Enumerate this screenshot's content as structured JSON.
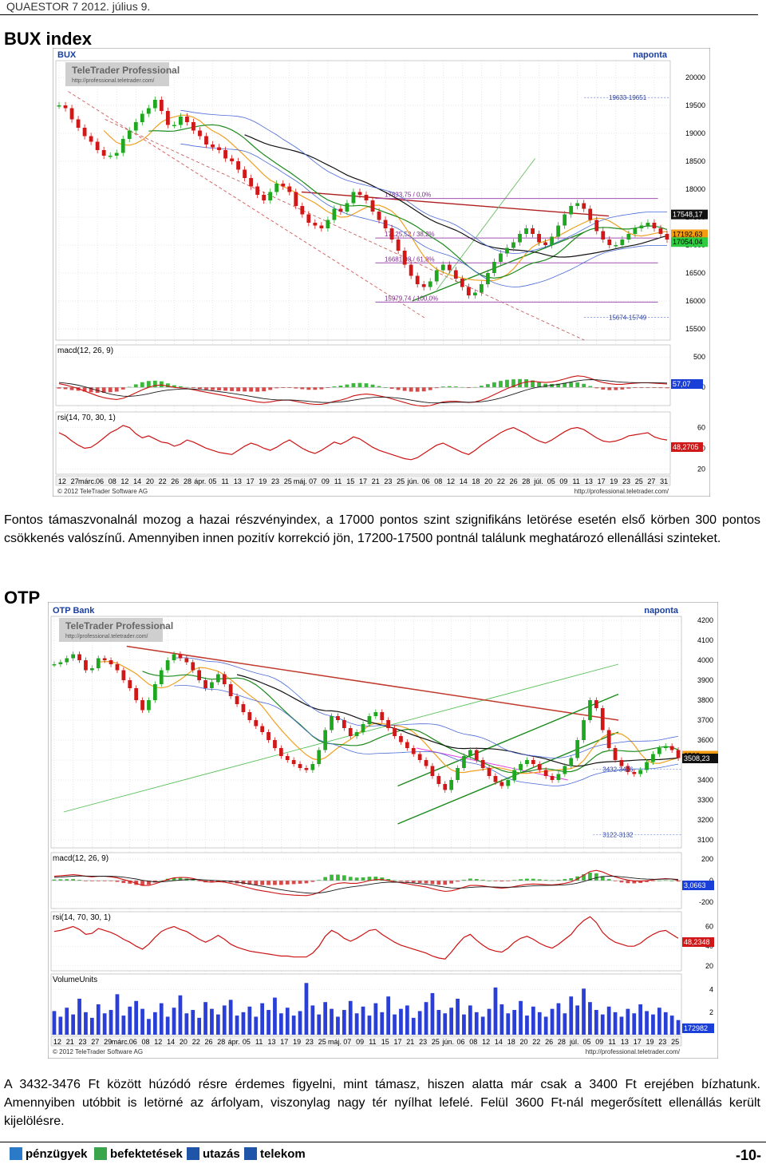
{
  "header": {
    "text": "QUAESTOR 7   2012. július 9."
  },
  "bux": {
    "section_title": "BUX index",
    "description": "Fontos támaszvonalnál mozog a hazai részvényindex, a 17000 pontos szint szignifikáns letörése esetén első körben 300 pontos csökkenés valószínű. Amennyiben innen pozitív korrekció jön, 17200-17500 pontnál találunk meghatározó ellenállási szinteket."
  },
  "otp": {
    "section_title": "OTP",
    "description": "A 3432-3476 Ft között húzódó résre érdemes figyelni, mint támasz, hiszen alatta már csak a 3400 Ft erejében bízhatunk. Amennyiben utóbbit is letörné az árfolyam, viszonylag nagy tér nyílhat lefelé. Felül 3600 Ft-nál megerősített ellenállás került kijelölésre."
  },
  "footer": {
    "items": [
      "pénzügyek",
      "befektetések",
      "utazás",
      "telekom"
    ],
    "page_number": "-10-",
    "colors": {
      "icon1": "#2a7ac7",
      "icon2": "#3aa54a",
      "icon3": "#1f55a8",
      "icon4": "#1f55a8"
    }
  },
  "chart_data": [
    {
      "type": "candlestick",
      "symbol": "BUX",
      "period": "naponta",
      "watermark": "TeleTrader Professional",
      "watermark_url": "http://professional.teletrader.com/",
      "copyright": "© 2012 TeleTrader Software AG",
      "source_url": "http://professional.teletrader.com/",
      "ylim": [
        15300,
        20300
      ],
      "yticks": [
        15500,
        16000,
        16500,
        17000,
        17500,
        18000,
        18500,
        19000,
        19500,
        20000
      ],
      "price_labels": [
        "17548,17",
        "17192,63",
        "17054,04"
      ],
      "zones": [
        "19633-19651",
        "15674-15749"
      ],
      "fib_levels": [
        {
          "label": "17833,75 / 0,0%",
          "value": 17834
        },
        {
          "label": "17125,52 / 38,2%",
          "value": 17126
        },
        {
          "label": "16681,98 / 61,8%",
          "value": 16682
        },
        {
          "label": "15979,74 / 100,0%",
          "value": 15980
        }
      ],
      "closes": [
        19500,
        19450,
        19250,
        19100,
        18950,
        18850,
        18700,
        18600,
        18600,
        18650,
        18900,
        19050,
        19200,
        19350,
        19450,
        19600,
        19400,
        19150,
        19150,
        19300,
        19200,
        19050,
        18950,
        18800,
        18750,
        18700,
        18550,
        18500,
        18350,
        18200,
        18050,
        17900,
        17800,
        17950,
        18100,
        18050,
        17950,
        17700,
        17550,
        17400,
        17350,
        17300,
        17450,
        17650,
        17600,
        17750,
        17950,
        17900,
        17800,
        17600,
        17450,
        17300,
        17100,
        16900,
        16650,
        16450,
        16300,
        16250,
        16350,
        16550,
        16650,
        16550,
        16400,
        16250,
        16100,
        16150,
        16300,
        16500,
        16700,
        16850,
        16950,
        17050,
        17200,
        17300,
        17200,
        17050,
        17000,
        17150,
        17350,
        17550,
        17700,
        17750,
        17650,
        17450,
        17250,
        17100,
        17000,
        17000,
        17100,
        17200,
        17300,
        17350,
        17400,
        17300,
        17200,
        17100
      ],
      "macd": {
        "label": "macd(12, 26, 9)",
        "ylim": [
          -300,
          700
        ],
        "yticks": [
          0,
          500
        ],
        "value_label": "57,07",
        "macd": [
          60,
          40,
          10,
          -20,
          -60,
          -100,
          -140,
          -170,
          -190,
          -200,
          -180,
          -140,
          -90,
          -40,
          0,
          30,
          40,
          20,
          0,
          -10,
          -20,
          -40,
          -60,
          -80,
          -100,
          -120,
          -140,
          -160,
          -180,
          -200,
          -220,
          -240,
          -250,
          -240,
          -220,
          -210,
          -210,
          -230,
          -250,
          -270,
          -280,
          -280,
          -260,
          -230,
          -210,
          -180,
          -140,
          -120,
          -110,
          -120,
          -140,
          -160,
          -190,
          -220,
          -250,
          -280,
          -300,
          -310,
          -300,
          -270,
          -240,
          -230,
          -230,
          -240,
          -250,
          -240,
          -210,
          -170,
          -120,
          -70,
          -20,
          20,
          60,
          90,
          100,
          90,
          80,
          90,
          110,
          140,
          170,
          190,
          180,
          150,
          110,
          80,
          60,
          50,
          50,
          60,
          70,
          75,
          75,
          70,
          62,
          57
        ],
        "signal": [
          80,
          70,
          55,
          35,
          10,
          -20,
          -50,
          -80,
          -110,
          -130,
          -145,
          -148,
          -140,
          -125,
          -105,
          -80,
          -60,
          -45,
          -35,
          -28,
          -25,
          -28,
          -35,
          -45,
          -56,
          -70,
          -84,
          -99,
          -115,
          -132,
          -150,
          -168,
          -185,
          -198,
          -205,
          -208,
          -208,
          -212,
          -220,
          -230,
          -240,
          -248,
          -250,
          -246,
          -239,
          -227,
          -210,
          -193,
          -177,
          -166,
          -161,
          -161,
          -167,
          -178,
          -192,
          -210,
          -228,
          -244,
          -255,
          -257,
          -254,
          -249,
          -245,
          -244,
          -245,
          -244,
          -237,
          -223,
          -203,
          -176,
          -145,
          -112,
          -77,
          -44,
          -15,
          6,
          21,
          35,
          50,
          68,
          88,
          108,
          122,
          128,
          125,
          116,
          105,
          94,
          85,
          80,
          78,
          78,
          78,
          77,
          74,
          71
        ]
      },
      "rsi": {
        "label": "rsi(14, 70, 30, 1)",
        "ylim": [
          15,
          75
        ],
        "yticks": [
          20,
          40,
          60
        ],
        "value_label": "48,2705",
        "values": [
          55,
          52,
          47,
          43,
          40,
          41,
          45,
          50,
          55,
          58,
          62,
          60,
          54,
          50,
          52,
          49,
          46,
          45,
          42,
          44,
          48,
          46,
          43,
          40,
          38,
          36,
          35,
          34,
          38,
          42,
          45,
          43,
          40,
          38,
          41,
          45,
          48,
          44,
          40,
          37,
          35,
          38,
          42,
          46,
          44,
          47,
          51,
          49,
          45,
          41,
          38,
          36,
          34,
          32,
          30,
          29,
          31,
          35,
          39,
          43,
          45,
          42,
          39,
          36,
          34,
          38,
          43,
          47,
          51,
          55,
          58,
          60,
          57,
          54,
          50,
          47,
          45,
          48,
          52,
          56,
          59,
          60,
          58,
          54,
          50,
          47,
          46,
          47,
          49,
          52,
          53,
          54,
          55,
          51,
          49,
          48
        ]
      },
      "x_labels": [
        "12",
        "27",
        "márc.",
        "06",
        "08",
        "12",
        "14",
        "20",
        "22",
        "26",
        "28",
        "ápr.",
        "05",
        "11",
        "13",
        "17",
        "19",
        "23",
        "25",
        "máj.",
        "07",
        "09",
        "11",
        "15",
        "17",
        "21",
        "23",
        "25",
        "jún.",
        "06",
        "08",
        "12",
        "14",
        "18",
        "20",
        "22",
        "26",
        "28",
        "júl.",
        "05",
        "09",
        "11",
        "13",
        "17",
        "19",
        "23",
        "25",
        "27",
        "31"
      ]
    },
    {
      "type": "candlestick",
      "symbol": "OTP Bank",
      "period": "naponta",
      "watermark": "TeleTrader Professional",
      "watermark_url": "http://professional.teletrader.com/",
      "copyright": "© 2012 TeleTrader Software AG",
      "source_url": "http://professional.teletrader.com/",
      "ylim": [
        3060,
        4220
      ],
      "yticks": [
        3100,
        3200,
        3300,
        3400,
        3500,
        3600,
        3700,
        3800,
        3900,
        4000,
        4100,
        4200
      ],
      "price_labels": [
        "3522",
        "3508,23"
      ],
      "zones": [
        "3432-3476",
        "3122-3132"
      ],
      "closes": [
        3980,
        3990,
        4010,
        4030,
        4000,
        3950,
        3960,
        4010,
        4000,
        3980,
        3950,
        3900,
        3860,
        3800,
        3750,
        3800,
        3880,
        3950,
        4000,
        4030,
        4010,
        3990,
        3950,
        3900,
        3860,
        3890,
        3930,
        3880,
        3820,
        3780,
        3740,
        3700,
        3670,
        3640,
        3600,
        3560,
        3520,
        3500,
        3480,
        3460,
        3450,
        3480,
        3550,
        3650,
        3720,
        3700,
        3660,
        3620,
        3640,
        3680,
        3720,
        3740,
        3700,
        3660,
        3620,
        3590,
        3560,
        3530,
        3500,
        3470,
        3420,
        3380,
        3350,
        3400,
        3460,
        3520,
        3550,
        3500,
        3460,
        3420,
        3390,
        3370,
        3400,
        3450,
        3480,
        3500,
        3480,
        3450,
        3420,
        3400,
        3430,
        3470,
        3510,
        3600,
        3700,
        3800,
        3760,
        3650,
        3560,
        3500,
        3470,
        3440,
        3430,
        3450,
        3490,
        3530,
        3560,
        3570,
        3550,
        3510
      ],
      "macd": {
        "label": "macd(12, 26, 9)",
        "ylim": [
          -260,
          260
        ],
        "yticks": [
          -200,
          0,
          200
        ],
        "value_label": "3,0663",
        "macd": [
          40,
          45,
          50,
          55,
          50,
          40,
          35,
          40,
          40,
          35,
          25,
          10,
          -5,
          -25,
          -45,
          -45,
          -30,
          -10,
          10,
          25,
          30,
          28,
          20,
          5,
          -10,
          -15,
          -10,
          -15,
          -25,
          -40,
          -55,
          -70,
          -85,
          -95,
          -105,
          -115,
          -125,
          -130,
          -135,
          -138,
          -140,
          -130,
          -110,
          -75,
          -40,
          -25,
          -20,
          -25,
          -25,
          -15,
          0,
          10,
          10,
          0,
          -10,
          -20,
          -30,
          -40,
          -50,
          -60,
          -75,
          -90,
          -100,
          -95,
          -80,
          -60,
          -45,
          -45,
          -50,
          -58,
          -65,
          -70,
          -65,
          -55,
          -45,
          -35,
          -32,
          -34,
          -38,
          -40,
          -35,
          -25,
          -12,
          15,
          50,
          85,
          95,
          80,
          55,
          35,
          18,
          5,
          -3,
          -5,
          0,
          8,
          14,
          18,
          14,
          3
        ],
        "signal": [
          30,
          33,
          37,
          41,
          43,
          42,
          41,
          41,
          41,
          40,
          37,
          32,
          24,
          15,
          3,
          -7,
          -12,
          -12,
          -7,
          -1,
          5,
          9,
          11,
          10,
          6,
          2,
          -1,
          -4,
          -8,
          -14,
          -22,
          -32,
          -42,
          -53,
          -64,
          -74,
          -85,
          -94,
          -102,
          -109,
          -115,
          -118,
          -116,
          -108,
          -95,
          -81,
          -69,
          -60,
          -53,
          -45,
          -36,
          -27,
          -19,
          -15,
          -14,
          -15,
          -18,
          -22,
          -28,
          -34,
          -42,
          -52,
          -61,
          -68,
          -70,
          -68,
          -64,
          -60,
          -58,
          -58,
          -60,
          -62,
          -62,
          -61,
          -58,
          -53,
          -49,
          -46,
          -45,
          -44,
          -42,
          -39,
          -34,
          -24,
          -9,
          10,
          27,
          38,
          41,
          40,
          35,
          29,
          23,
          17,
          14,
          13,
          13,
          14,
          14,
          12
        ]
      },
      "rsi": {
        "label": "rsi(14, 70, 30, 1)",
        "ylim": [
          15,
          75
        ],
        "yticks": [
          20,
          40,
          60
        ],
        "value_label": "48,2348",
        "values": [
          55,
          56,
          58,
          60,
          57,
          52,
          53,
          58,
          56,
          54,
          51,
          47,
          44,
          40,
          37,
          42,
          49,
          55,
          58,
          60,
          57,
          55,
          51,
          47,
          44,
          47,
          51,
          47,
          42,
          39,
          37,
          35,
          34,
          33,
          32,
          31,
          30,
          30,
          29,
          29,
          29,
          33,
          40,
          50,
          56,
          53,
          48,
          45,
          48,
          52,
          56,
          57,
          52,
          48,
          44,
          41,
          39,
          37,
          35,
          33,
          30,
          28,
          27,
          34,
          42,
          49,
          52,
          46,
          41,
          37,
          35,
          34,
          38,
          44,
          48,
          50,
          47,
          43,
          40,
          38,
          42,
          47,
          52,
          60,
          66,
          70,
          64,
          54,
          48,
          44,
          42,
          40,
          40,
          43,
          48,
          52,
          55,
          56,
          52,
          48
        ]
      },
      "volume": {
        "label": "VolumeUnits",
        "ylim": [
          0,
          5.4
        ],
        "yticks": [
          2,
          4
        ],
        "value_label": "172982",
        "values": [
          2.1,
          1.6,
          2.4,
          1.8,
          3.2,
          2.0,
          1.5,
          2.7,
          1.9,
          2.2,
          3.6,
          1.7,
          2.5,
          3.0,
          2.3,
          1.4,
          2.0,
          2.8,
          1.6,
          2.4,
          3.5,
          1.9,
          2.2,
          1.5,
          2.9,
          2.3,
          1.8,
          2.6,
          3.1,
          1.7,
          2.0,
          2.5,
          1.6,
          2.8,
          2.2,
          3.3,
          1.9,
          2.4,
          1.7,
          2.1,
          4.6,
          2.6,
          1.8,
          2.9,
          2.3,
          1.6,
          2.2,
          3.0,
          1.9,
          2.5,
          1.7,
          2.8,
          2.0,
          3.4,
          1.8,
          2.3,
          2.6,
          1.5,
          2.1,
          2.9,
          3.7,
          2.2,
          1.9,
          2.4,
          3.2,
          1.8,
          2.6,
          2.0,
          1.6,
          2.3,
          4.2,
          2.7,
          1.9,
          2.2,
          3.0,
          1.7,
          2.5,
          2.0,
          1.6,
          2.3,
          2.8,
          1.9,
          3.4,
          2.6,
          4.1,
          2.9,
          2.2,
          1.8,
          2.5,
          2.0,
          1.6,
          2.3,
          1.9,
          2.7,
          2.1,
          1.8,
          2.4,
          2.0,
          1.7,
          1.3
        ]
      },
      "x_labels": [
        "12",
        "21",
        "23",
        "27",
        "29",
        "márc.",
        "06",
        "08",
        "12",
        "14",
        "20",
        "22",
        "26",
        "28",
        "ápr.",
        "05",
        "11",
        "13",
        "17",
        "19",
        "23",
        "25",
        "máj.",
        "07",
        "09",
        "11",
        "15",
        "17",
        "21",
        "23",
        "25",
        "jún.",
        "06",
        "08",
        "12",
        "14",
        "18",
        "20",
        "22",
        "26",
        "28",
        "júl.",
        "05",
        "09",
        "11",
        "13",
        "17",
        "19",
        "23",
        "25"
      ]
    }
  ]
}
